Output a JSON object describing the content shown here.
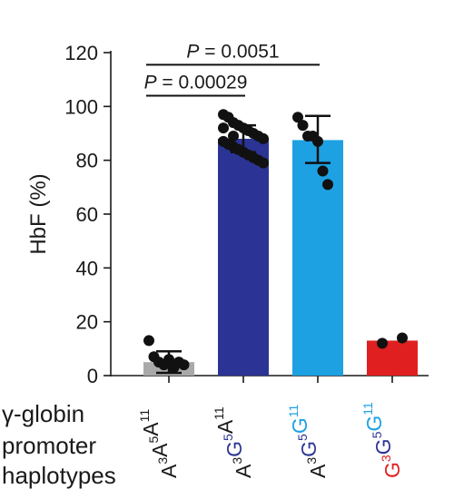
{
  "chart_data": {
    "type": "bar",
    "ylabel": "HbF (%)",
    "ylim": [
      0,
      120
    ],
    "yticks": [
      0,
      20,
      40,
      60,
      80,
      100,
      120
    ],
    "xgroup_label": [
      "γ-globin",
      "promoter",
      "haplotypes"
    ],
    "categories": [
      {
        "id": "AAA",
        "label": "A3A5A11",
        "label_parts": [
          {
            "base": "A",
            "sup": "3",
            "color": "#1a1a1a"
          },
          {
            "base": "A",
            "sup": "5",
            "color": "#1a1a1a"
          },
          {
            "base": "A",
            "sup": "11",
            "color": "#1a1a1a"
          }
        ],
        "bar_value": 5,
        "bar_color": "#a9a9a9",
        "error": [
          1,
          9
        ],
        "points": [
          13,
          7,
          5,
          4,
          6,
          3,
          5,
          4
        ]
      },
      {
        "id": "AGA",
        "label": "A3G5A11",
        "label_parts": [
          {
            "base": "A",
            "sup": "3",
            "color": "#1a1a1a"
          },
          {
            "base": "G",
            "sup": "5",
            "color": "#2b3494"
          },
          {
            "base": "A",
            "sup": "11",
            "color": "#1a1a1a"
          }
        ],
        "bar_value": 88,
        "bar_color": "#2b3494",
        "error": [
          83,
          93
        ],
        "points": [
          97,
          96,
          94,
          93,
          92,
          91,
          90,
          89,
          88,
          87,
          86,
          85,
          84,
          83,
          82,
          81,
          80,
          79,
          92,
          86,
          89,
          84
        ]
      },
      {
        "id": "AGG",
        "label": "A3G5G11",
        "label_parts": [
          {
            "base": "A",
            "sup": "3",
            "color": "#1a1a1a"
          },
          {
            "base": "G",
            "sup": "5",
            "color": "#2b3494"
          },
          {
            "base": "G",
            "sup": "11",
            "color": "#1da1e2"
          }
        ],
        "bar_value": 87.5,
        "bar_color": "#1da1e2",
        "error": [
          79,
          96.5
        ],
        "points": [
          96,
          93,
          89,
          89,
          87,
          76,
          71
        ]
      },
      {
        "id": "GGG",
        "label": "G3G5G11",
        "label_parts": [
          {
            "base": "G",
            "sup": "3",
            "color": "#e02020"
          },
          {
            "base": "G",
            "sup": "5",
            "color": "#2b3494"
          },
          {
            "base": "G",
            "sup": "11",
            "color": "#1da1e2"
          }
        ],
        "bar_value": 13,
        "bar_color": "#e02020",
        "error": null,
        "points": [
          12,
          14
        ]
      }
    ],
    "comparisons": [
      {
        "from": "AAA",
        "to": "AGG",
        "text": "P = 0.0051",
        "level": 115.5
      },
      {
        "from": "AAA",
        "to": "AGA",
        "text": "P = 0.00029",
        "level": 104
      }
    ]
  }
}
